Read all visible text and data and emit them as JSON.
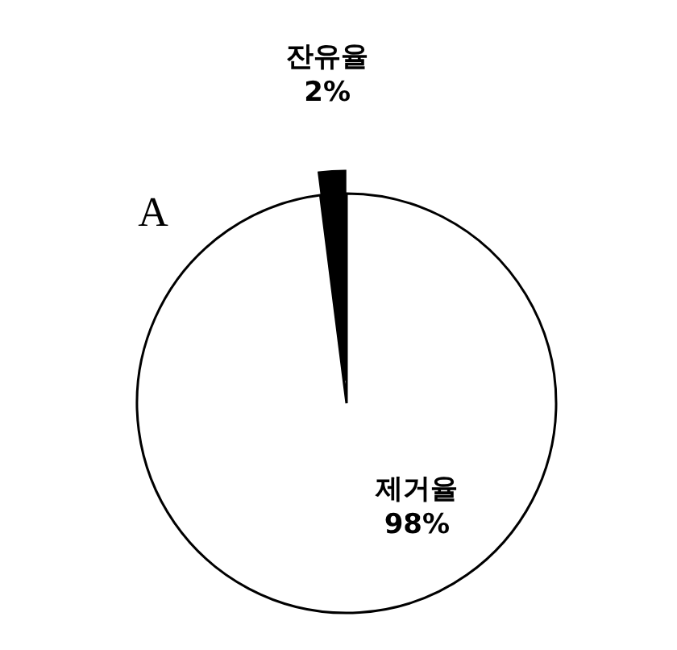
{
  "chart_data": {
    "type": "pie",
    "categories": [
      "잔유율",
      "제거율"
    ],
    "values": [
      2,
      98
    ],
    "value_labels": [
      "2%",
      "98%"
    ],
    "colors": [
      "#000000",
      "#ffffff"
    ],
    "annotations": [
      "A"
    ]
  }
}
